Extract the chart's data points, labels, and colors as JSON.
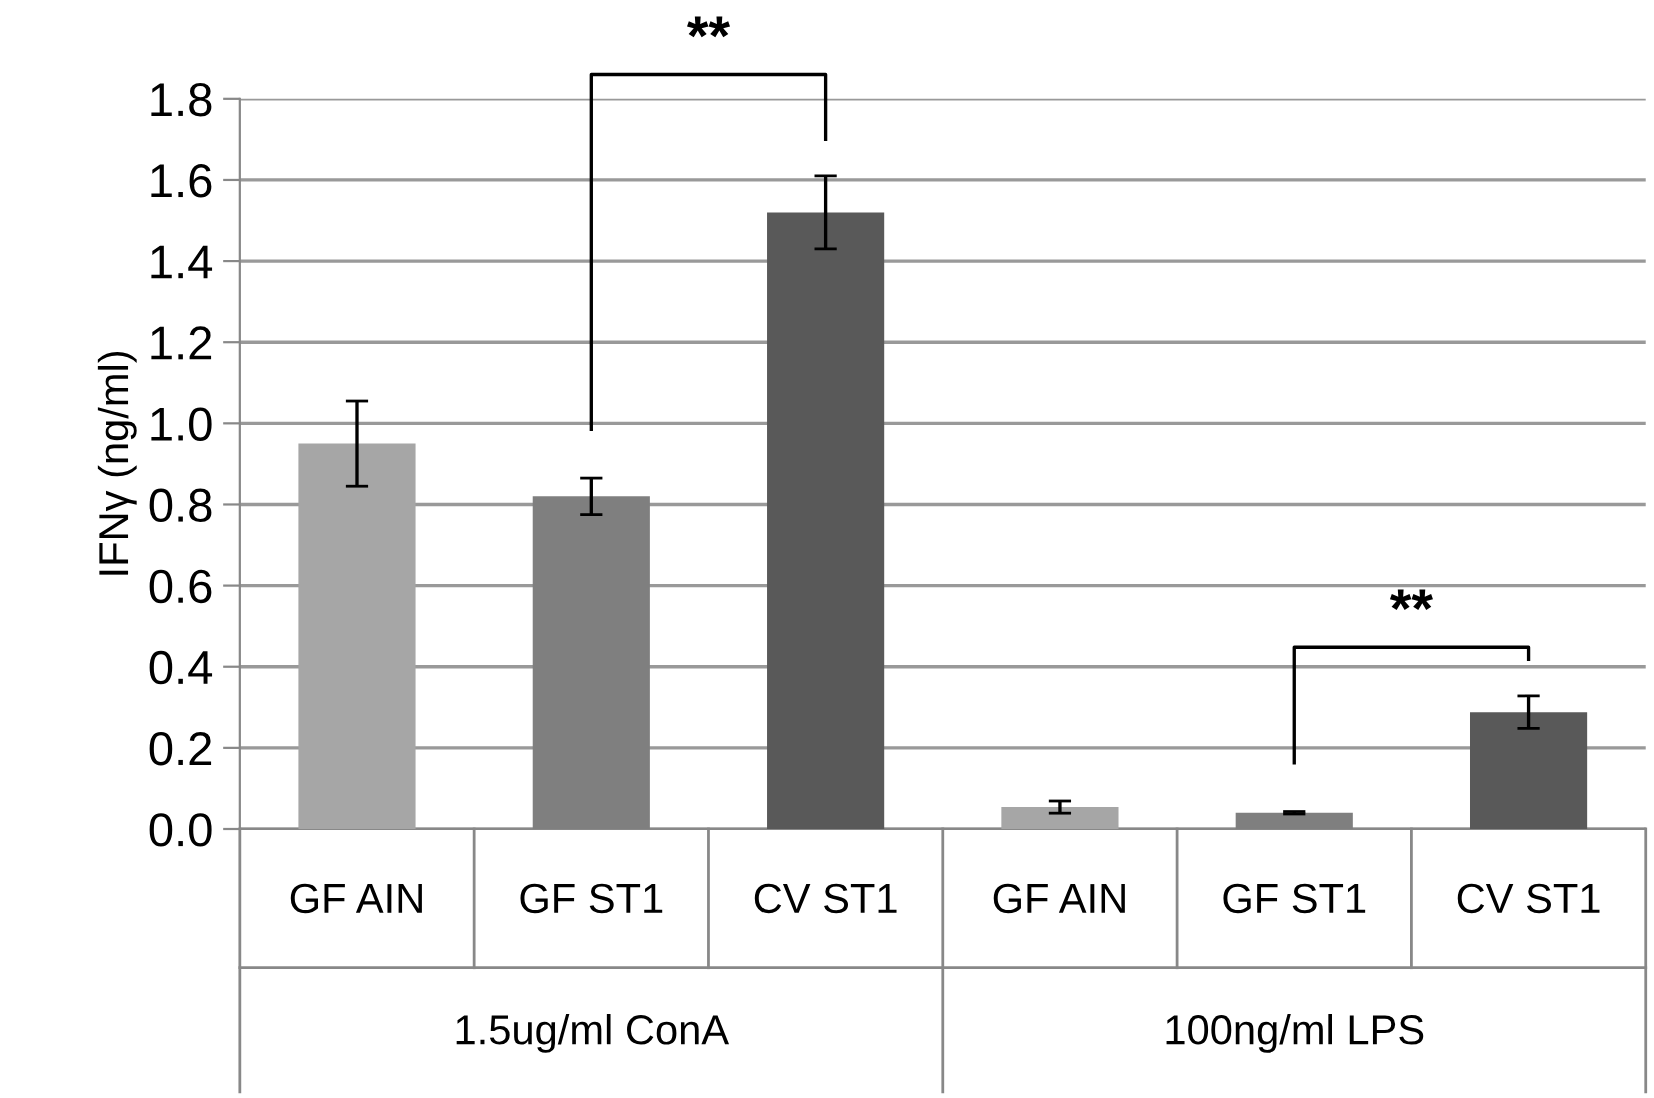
{
  "chart_data": {
    "type": "bar",
    "ylabel": "IFNγ (ng/ml)",
    "categories": [
      "GF AIN",
      "GF ST1",
      "CV ST1",
      "GF AIN",
      "GF ST1",
      "CV ST1"
    ],
    "values": [
      0.95,
      0.82,
      1.52,
      0.054,
      0.04,
      0.288
    ],
    "errors": [
      0.105,
      0.045,
      0.09,
      0.015,
      0.003,
      0.04
    ],
    "colors": [
      "#a6a6a6",
      "#7f7f7f",
      "#595959",
      "#a6a6a6",
      "#7f7f7f",
      "#595959"
    ],
    "ylim": [
      0,
      1.8
    ],
    "yticks": [
      {
        "value": 0,
        "label": "0.0"
      },
      {
        "value": 0.2,
        "label": "0.2"
      },
      {
        "value": 0.4,
        "label": "0.4"
      },
      {
        "value": 0.6,
        "label": "0.6"
      },
      {
        "value": 0.8,
        "label": "0.8"
      },
      {
        "value": 1.0,
        "label": "1.0"
      },
      {
        "value": 1.2,
        "label": "1.2"
      },
      {
        "value": 1.4,
        "label": "1.4"
      },
      {
        "value": 1.6,
        "label": "1.6"
      },
      {
        "value": 1.8,
        "label": "1.8"
      }
    ],
    "grid": "y",
    "annotations": [
      "**",
      "**",
      "1.5ug/ml ConA",
      "100ng/ml LPS"
    ]
  }
}
